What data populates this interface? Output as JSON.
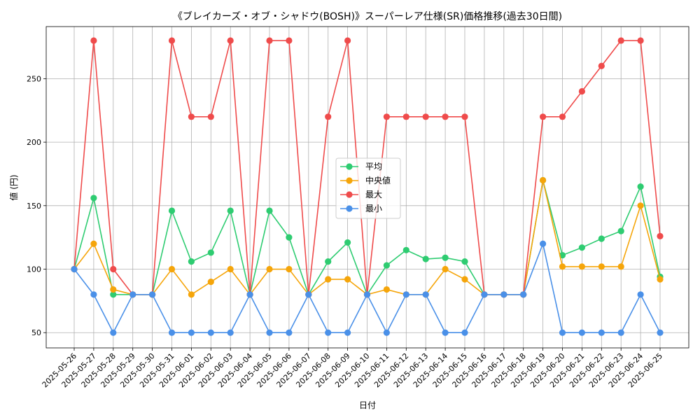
{
  "chart_data": {
    "type": "line",
    "title": "《ブレイカーズ・オブ・シャドウ(BOSH)》スーパーレア仕様(SR)価格推移(過去30日間)",
    "xlabel": "日付",
    "ylabel": "値 (円)",
    "ylim": [
      38,
      291
    ],
    "yticks": [
      50,
      100,
      150,
      200,
      250
    ],
    "grid": true,
    "legend_position": "center",
    "categories": [
      "2025-05-26",
      "2025-05-27",
      "2025-05-28",
      "2025-05-29",
      "2025-05-30",
      "2025-05-31",
      "2025-06-01",
      "2025-06-02",
      "2025-06-03",
      "2025-06-04",
      "2025-06-05",
      "2025-06-06",
      "2025-06-07",
      "2025-06-08",
      "2025-06-09",
      "2025-06-10",
      "2025-06-11",
      "2025-06-12",
      "2025-06-13",
      "2025-06-14",
      "2025-06-15",
      "2025-06-16",
      "2025-06-17",
      "2025-06-18",
      "2025-06-19",
      "2025-06-20",
      "2025-06-21",
      "2025-06-22",
      "2025-06-23",
      "2025-06-24",
      "2025-06-25"
    ],
    "series": [
      {
        "name": "平均",
        "color": "#2ecc71",
        "values": [
          100,
          156,
          80,
          80,
          80,
          146,
          106,
          113,
          146,
          80,
          146,
          125,
          80,
          106,
          121,
          80,
          103,
          115,
          108,
          109,
          106,
          80,
          80,
          80,
          170,
          111,
          117,
          124,
          130,
          165,
          94
        ]
      },
      {
        "name": "中央値",
        "color": "#f5a50a",
        "values": [
          100,
          120,
          84,
          80,
          80,
          100,
          80,
          90,
          100,
          80,
          100,
          100,
          80,
          92,
          92,
          80,
          84,
          80,
          80,
          100,
          92,
          80,
          80,
          80,
          170,
          102,
          102,
          102,
          102,
          150,
          92
        ]
      },
      {
        "name": "最大",
        "color": "#ef4b4b",
        "values": [
          100,
          280,
          100,
          80,
          80,
          280,
          220,
          220,
          280,
          80,
          280,
          280,
          80,
          220,
          280,
          80,
          220,
          220,
          220,
          220,
          220,
          80,
          80,
          80,
          220,
          220,
          240,
          260,
          280,
          280,
          126
        ]
      },
      {
        "name": "最小",
        "color": "#4a90e8",
        "values": [
          100,
          80,
          50,
          80,
          80,
          50,
          50,
          50,
          50,
          80,
          50,
          50,
          80,
          50,
          50,
          80,
          50,
          80,
          80,
          50,
          50,
          80,
          80,
          80,
          120,
          50,
          50,
          50,
          50,
          80,
          50
        ]
      }
    ]
  }
}
